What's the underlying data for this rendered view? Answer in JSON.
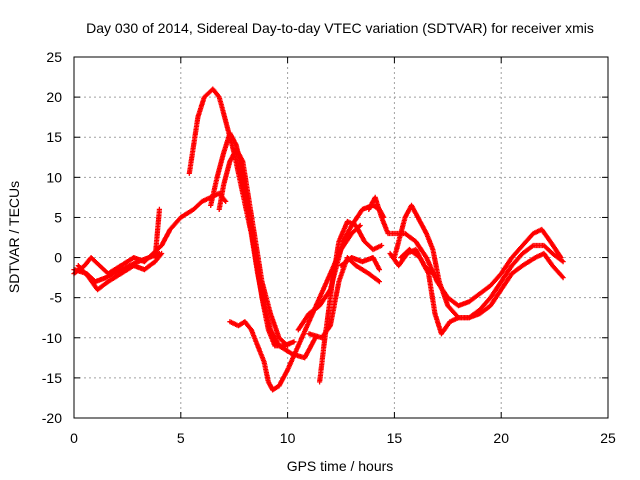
{
  "chart_data": {
    "type": "scatter",
    "title": "Day 030 of 2014, Sidereal Day-to-day VTEC variation (SDTVAR) for receiver xmis",
    "xlabel": "GPS time / hours",
    "ylabel": "SDTVAR / TECUs",
    "xlim": [
      0,
      25
    ],
    "ylim": [
      -20,
      25
    ],
    "xticks": [
      "0",
      "5",
      "10",
      "15",
      "20",
      "25"
    ],
    "yticks": [
      "-20",
      "-15",
      "-10",
      "-5",
      "0",
      "5",
      "10",
      "15",
      "20",
      "25"
    ],
    "grid": true,
    "marker": "+",
    "series_color": "#ff0000",
    "series": [
      {
        "name": "track-1",
        "points": [
          [
            0,
            -2
          ],
          [
            0.5,
            -1
          ],
          [
            0.8,
            0
          ],
          [
            1.2,
            -1
          ],
          [
            1.6,
            -2
          ],
          [
            2.2,
            -1
          ],
          [
            2.8,
            0
          ],
          [
            3.3,
            -0.5
          ],
          [
            3.7,
            0.5
          ],
          [
            4.1,
            1.5
          ],
          [
            4.5,
            3.5
          ],
          [
            5,
            5
          ],
          [
            5.6,
            6
          ],
          [
            6,
            7
          ],
          [
            6.4,
            7.5
          ],
          [
            6.8,
            8
          ],
          [
            7.1,
            7
          ]
        ]
      },
      {
        "name": "track-2",
        "points": [
          [
            0,
            -1.5
          ],
          [
            0.6,
            -2
          ],
          [
            1,
            -3
          ],
          [
            1.5,
            -2.5
          ],
          [
            2.2,
            -1.5
          ],
          [
            3,
            -0.5
          ],
          [
            3.5,
            0
          ],
          [
            4,
            0.5
          ]
        ]
      },
      {
        "name": "track-3",
        "points": [
          [
            0.2,
            -1
          ],
          [
            0.7,
            -2.5
          ],
          [
            1.1,
            -4
          ],
          [
            1.6,
            -3
          ],
          [
            2.2,
            -2
          ],
          [
            2.8,
            -1
          ],
          [
            3.3,
            -1.5
          ],
          [
            3.8,
            -0.5
          ],
          [
            4.1,
            0.5
          ]
        ]
      },
      {
        "name": "track-4",
        "points": [
          [
            3.8,
            0
          ],
          [
            4,
            6
          ]
        ]
      },
      {
        "name": "track-5",
        "points": [
          [
            5.4,
            10.5
          ],
          [
            5.6,
            14
          ],
          [
            5.8,
            17.5
          ],
          [
            6.1,
            20
          ],
          [
            6.5,
            21
          ],
          [
            6.8,
            20
          ],
          [
            7.1,
            17
          ],
          [
            7.5,
            13
          ],
          [
            7.9,
            8
          ],
          [
            8.3,
            3
          ],
          [
            8.6,
            -2
          ],
          [
            8.9,
            -6
          ],
          [
            9.2,
            -9
          ],
          [
            9.6,
            -11
          ],
          [
            10.2,
            -12
          ],
          [
            10.8,
            -12.5
          ],
          [
            11.3,
            -10
          ]
        ]
      },
      {
        "name": "track-6",
        "points": [
          [
            6.4,
            6.5
          ],
          [
            6.7,
            10
          ],
          [
            7,
            13
          ],
          [
            7.3,
            15.5
          ],
          [
            7.6,
            14
          ],
          [
            7.9,
            10
          ],
          [
            8.2,
            5
          ],
          [
            8.5,
            0
          ],
          [
            8.8,
            -5
          ],
          [
            9.1,
            -9
          ],
          [
            9.4,
            -11
          ],
          [
            9.8,
            -11
          ],
          [
            10.3,
            -10.5
          ]
        ]
      },
      {
        "name": "track-7",
        "points": [
          [
            6.8,
            6
          ],
          [
            7,
            9
          ],
          [
            7.3,
            12
          ],
          [
            7.6,
            13.5
          ],
          [
            7.9,
            12
          ],
          [
            8.2,
            7
          ],
          [
            8.5,
            2
          ],
          [
            8.8,
            -3
          ],
          [
            9.2,
            -7
          ],
          [
            9.6,
            -10
          ],
          [
            10,
            -11
          ]
        ]
      },
      {
        "name": "track-8",
        "points": [
          [
            7.3,
            -8
          ],
          [
            7.7,
            -8.5
          ],
          [
            8,
            -8
          ],
          [
            8.3,
            -9
          ],
          [
            8.6,
            -11
          ],
          [
            8.9,
            -13
          ],
          [
            9.1,
            -15.5
          ],
          [
            9.3,
            -16.5
          ],
          [
            9.6,
            -16
          ],
          [
            10,
            -14
          ],
          [
            10.5,
            -11
          ],
          [
            11,
            -8
          ],
          [
            11.5,
            -5
          ],
          [
            12,
            -2
          ],
          [
            12.5,
            1
          ],
          [
            13,
            3
          ],
          [
            13.4,
            4
          ]
        ]
      },
      {
        "name": "track-9",
        "points": [
          [
            10.5,
            -9
          ],
          [
            11,
            -7
          ],
          [
            11.5,
            -6
          ],
          [
            12,
            -4
          ],
          [
            12.3,
            -1
          ],
          [
            12.6,
            2
          ],
          [
            13,
            4
          ],
          [
            13.5,
            6
          ],
          [
            14,
            6.5
          ],
          [
            14.3,
            6
          ],
          [
            14.5,
            5
          ]
        ]
      },
      {
        "name": "track-10",
        "points": [
          [
            11,
            -9.5
          ],
          [
            11.6,
            -10
          ],
          [
            12,
            -8.5
          ],
          [
            12.4,
            -3
          ],
          [
            12.8,
            0
          ],
          [
            13.2,
            -1
          ],
          [
            13.8,
            -2
          ],
          [
            14.3,
            -3
          ]
        ]
      },
      {
        "name": "track-11",
        "points": [
          [
            11.5,
            -15.5
          ],
          [
            11.7,
            -11
          ],
          [
            11.9,
            -7
          ],
          [
            12.1,
            -3
          ],
          [
            12.4,
            2
          ],
          [
            12.8,
            4.5
          ],
          [
            13.2,
            4
          ],
          [
            13.6,
            2
          ],
          [
            14,
            1
          ],
          [
            14.4,
            1.5
          ]
        ]
      },
      {
        "name": "track-12",
        "points": [
          [
            12.5,
            -1
          ],
          [
            13,
            0
          ],
          [
            13.5,
            -0.5
          ],
          [
            14,
            0
          ],
          [
            14.3,
            -1.5
          ]
        ]
      },
      {
        "name": "track-13",
        "points": [
          [
            13.8,
            6
          ],
          [
            14.1,
            7.5
          ],
          [
            14.4,
            5
          ],
          [
            14.7,
            3
          ],
          [
            15.5,
            3
          ],
          [
            16,
            2
          ],
          [
            16.5,
            0
          ],
          [
            17,
            -3
          ],
          [
            17.5,
            -5
          ],
          [
            18,
            -6
          ],
          [
            18.5,
            -5.5
          ],
          [
            19,
            -4.5
          ],
          [
            19.5,
            -3.5
          ],
          [
            20,
            -2
          ],
          [
            20.5,
            0
          ],
          [
            21,
            1.5
          ],
          [
            21.5,
            3
          ],
          [
            21.9,
            3.5
          ],
          [
            22.3,
            2
          ],
          [
            22.8,
            0
          ]
        ]
      },
      {
        "name": "track-14",
        "points": [
          [
            15,
            0
          ],
          [
            15.5,
            5
          ],
          [
            15.8,
            6.5
          ],
          [
            16.1,
            5
          ],
          [
            16.5,
            3
          ],
          [
            16.8,
            1
          ],
          [
            17.1,
            -3
          ],
          [
            17.5,
            -6
          ],
          [
            18,
            -7.5
          ],
          [
            18.5,
            -7.5
          ],
          [
            19,
            -6.5
          ],
          [
            19.5,
            -5
          ],
          [
            20,
            -3
          ],
          [
            20.5,
            -1
          ],
          [
            21,
            0.5
          ],
          [
            21.5,
            1.5
          ],
          [
            22,
            1.5
          ],
          [
            22.4,
            0.5
          ],
          [
            22.9,
            -0.5
          ]
        ]
      },
      {
        "name": "track-15",
        "points": [
          [
            15.3,
            0
          ],
          [
            15.7,
            1
          ],
          [
            16.2,
            0
          ],
          [
            16.6,
            -2
          ],
          [
            16.9,
            -7
          ],
          [
            17.2,
            -9.5
          ],
          [
            17.6,
            -8
          ],
          [
            18,
            -7.5
          ],
          [
            18.5,
            -7.5
          ],
          [
            19,
            -7
          ],
          [
            19.5,
            -6
          ],
          [
            20,
            -4
          ],
          [
            20.5,
            -2
          ],
          [
            21,
            -1
          ],
          [
            21.6,
            0
          ],
          [
            22,
            0.5
          ],
          [
            22.4,
            -1
          ],
          [
            22.9,
            -2.5
          ]
        ]
      },
      {
        "name": "track-16",
        "points": [
          [
            14.8,
            0.5
          ],
          [
            15.2,
            -1
          ],
          [
            15.6,
            0.5
          ],
          [
            16,
            1
          ],
          [
            16.4,
            -1
          ],
          [
            16.8,
            -2
          ]
        ]
      }
    ]
  }
}
